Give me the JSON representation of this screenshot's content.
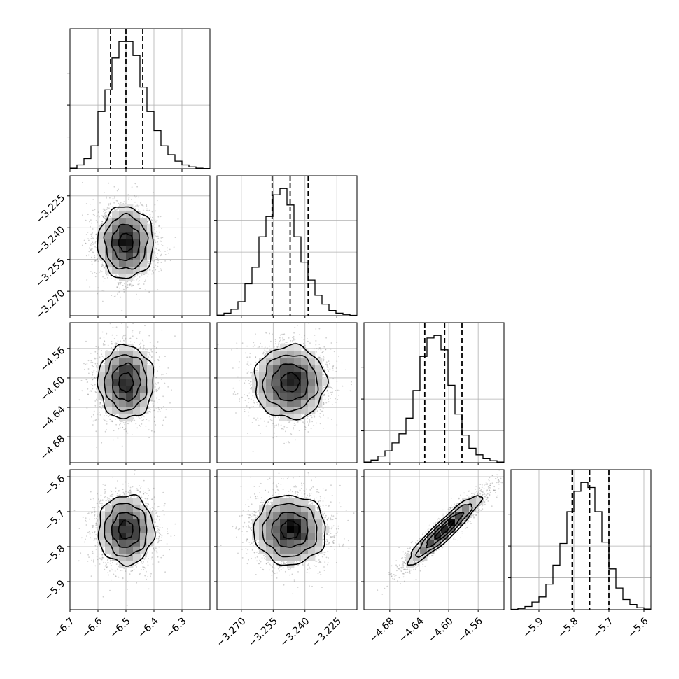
{
  "chart_data": {
    "type": "corner",
    "title": "",
    "parameters": [
      {
        "ticks": [
          -6.7,
          -6.6,
          -6.5,
          -6.4,
          -6.3
        ],
        "tick_labels": [
          "−6.7",
          "−6.6",
          "−6.5",
          "−6.4",
          "−6.3"
        ],
        "range": [
          -6.7,
          -6.2
        ],
        "quantiles": [
          -6.555,
          -6.5,
          -6.44
        ],
        "mean": -6.5,
        "sd": 0.05
      },
      {
        "ticks": [
          -3.27,
          -3.255,
          -3.24,
          -3.225
        ],
        "tick_labels": [
          "−3.270",
          "−3.255",
          "−3.240",
          "−3.225"
        ],
        "range": [
          -3.2815,
          -3.2155
        ],
        "quantiles": [
          -3.2555,
          -3.247,
          -3.2385
        ],
        "mean": -3.247,
        "sd": 0.0085
      },
      {
        "ticks": [
          -4.68,
          -4.64,
          -4.6,
          -4.56
        ],
        "tick_labels": [
          "−4.68",
          "−4.64",
          "−4.60",
          "−4.56"
        ],
        "range": [
          -4.715,
          -4.525
        ],
        "quantiles": [
          -4.6325,
          -4.6055,
          -4.582
        ],
        "mean": -4.606,
        "sd": 0.025
      },
      {
        "ticks": [
          -5.9,
          -5.8,
          -5.7,
          -5.6
        ],
        "tick_labels": [
          "−5.9",
          "−5.8",
          "−5.7",
          "−5.6"
        ],
        "range": [
          -5.98,
          -5.58
        ],
        "quantiles": [
          -5.805,
          -5.755,
          -5.7
        ],
        "mean": -5.752,
        "sd": 0.05
      }
    ],
    "correlations": [
      [
        1,
        0,
        0,
        0
      ],
      [
        0,
        1,
        0,
        0
      ],
      [
        0,
        0,
        1,
        0.93
      ],
      [
        0,
        0,
        0.93,
        1
      ]
    ],
    "histograms": [
      [
        0.005,
        0.03,
        0.08,
        0.18,
        0.45,
        0.62,
        0.87,
        1.0,
        1.0,
        0.89,
        0.64,
        0.45,
        0.3,
        0.18,
        0.11,
        0.06,
        0.03,
        0.015,
        0.005,
        0.002
      ],
      [
        0.004,
        0.02,
        0.05,
        0.11,
        0.25,
        0.38,
        0.62,
        0.78,
        0.95,
        1.0,
        0.87,
        0.62,
        0.42,
        0.28,
        0.16,
        0.09,
        0.04,
        0.02,
        0.01,
        0.003
      ],
      [
        0.005,
        0.02,
        0.05,
        0.09,
        0.15,
        0.22,
        0.34,
        0.55,
        0.81,
        0.95,
        0.97,
        0.86,
        0.59,
        0.37,
        0.21,
        0.11,
        0.06,
        0.03,
        0.015,
        0.005
      ],
      [
        0.003,
        0.01,
        0.025,
        0.06,
        0.1,
        0.2,
        0.35,
        0.52,
        0.77,
        0.93,
        1.0,
        0.96,
        0.77,
        0.53,
        0.32,
        0.17,
        0.08,
        0.04,
        0.015,
        0.005
      ]
    ],
    "histogram_yticks": [
      0.25,
      0.5,
      0.75
    ],
    "grid": true,
    "xlabel": "",
    "ylabel": ""
  }
}
